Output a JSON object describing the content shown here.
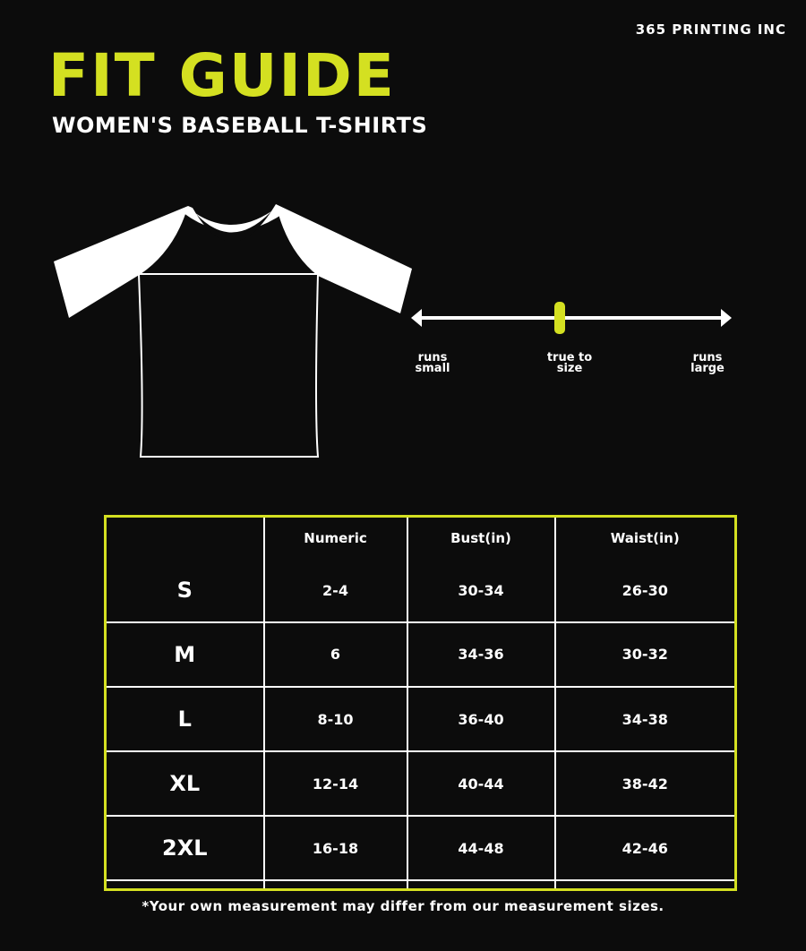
{
  "brand": "365 PRINTING INC",
  "title": "FIT GUIDE",
  "subtitle": "WOMEN'S BASEBALL T-SHIRTS",
  "fit_scale": {
    "labels": [
      "runs small",
      "true to size",
      "runs large"
    ],
    "selected": "true to size",
    "marker_color": "#d4e021"
  },
  "accent_color": "#d4e021",
  "table": {
    "headers": [
      "",
      "Numeric",
      "Bust(in)",
      "Waist(in)"
    ],
    "rows": [
      [
        "S",
        "2-4",
        "30-34",
        "26-30"
      ],
      [
        "M",
        "6",
        "34-36",
        "30-32"
      ],
      [
        "L",
        "8-10",
        "36-40",
        "34-38"
      ],
      [
        "XL",
        "12-14",
        "40-44",
        "38-42"
      ],
      [
        "2XL",
        "16-18",
        "44-48",
        "42-46"
      ],
      [
        "",
        "",
        "",
        ""
      ]
    ]
  },
  "footnote": "*Your own measurement may differ from our measurement sizes."
}
